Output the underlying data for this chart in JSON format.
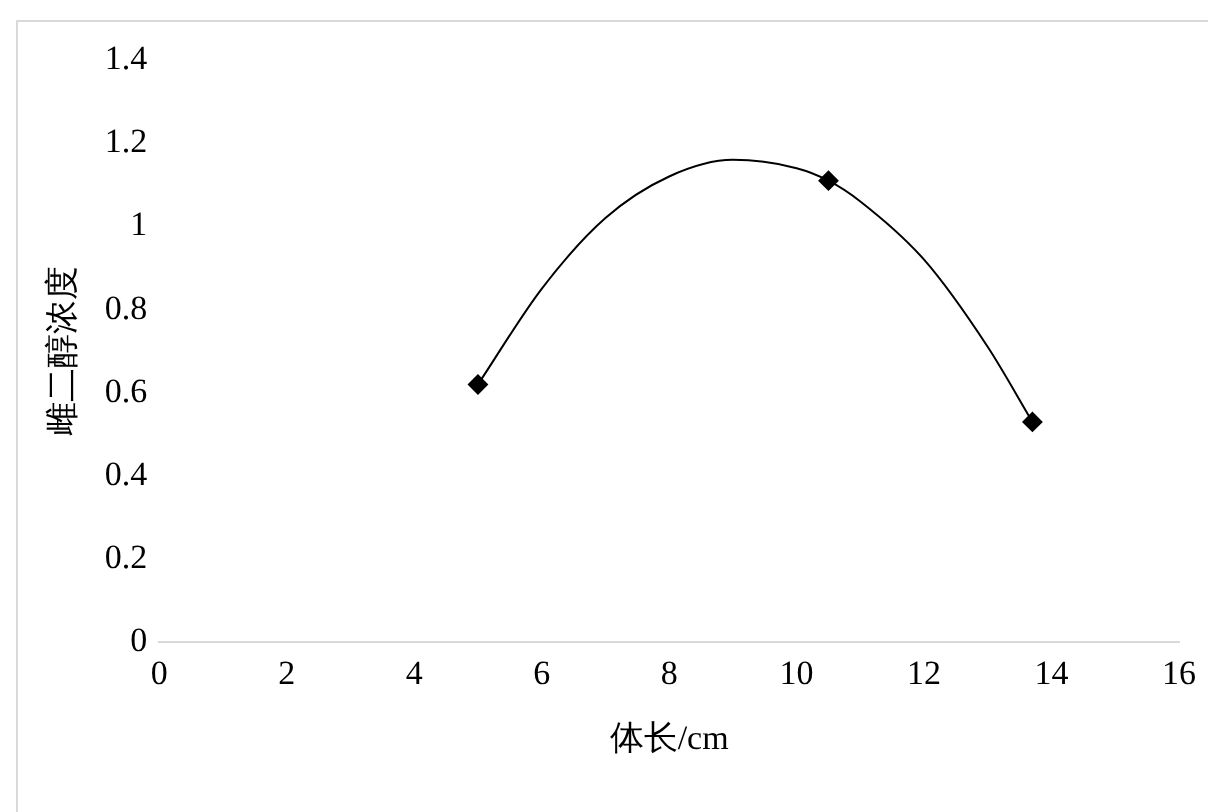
{
  "chart_data": {
    "type": "scatter",
    "xlabel": "体长/cm",
    "ylabel": "雌二醇浓度",
    "xlim": [
      0,
      16
    ],
    "xticks": [
      0,
      2,
      4,
      6,
      8,
      10,
      12,
      14,
      16
    ],
    "ylim": [
      0,
      1.4
    ],
    "yticks": [
      0,
      0.2,
      0.4,
      0.6,
      0.8,
      1,
      1.2,
      1.4
    ],
    "grid": false,
    "legend": false,
    "series": [
      {
        "type": "line",
        "color": "#000000",
        "marker": "none",
        "x": [
          5,
          6,
          7,
          8,
          9,
          10,
          10.5,
          11,
          12,
          13,
          13.7
        ],
        "values": [
          0.62,
          0.85,
          1.02,
          1.12,
          1.16,
          1.14,
          1.11,
          1.06,
          0.92,
          0.71,
          0.53
        ]
      },
      {
        "type": "scatter",
        "color": "#000000",
        "marker": "diamond",
        "x": [
          5,
          10.5,
          13.7
        ],
        "values": [
          0.62,
          1.11,
          0.53
        ]
      }
    ]
  }
}
